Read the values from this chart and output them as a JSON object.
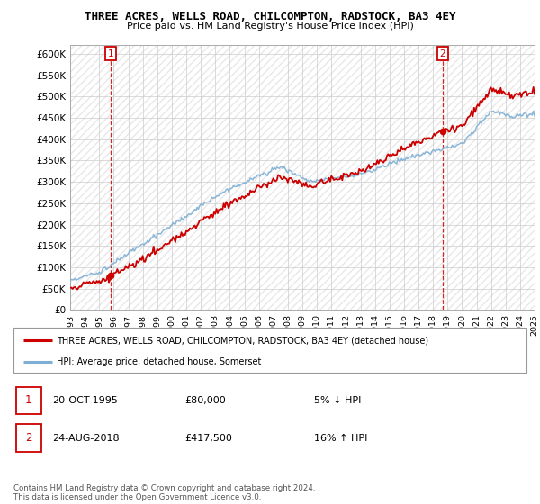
{
  "title": "THREE ACRES, WELLS ROAD, CHILCOMPTON, RADSTOCK, BA3 4EY",
  "subtitle": "Price paid vs. HM Land Registry's House Price Index (HPI)",
  "legend_label1": "THREE ACRES, WELLS ROAD, CHILCOMPTON, RADSTOCK, BA3 4EY (detached house)",
  "legend_label2": "HPI: Average price, detached house, Somerset",
  "annotation1_date": "20-OCT-1995",
  "annotation1_price": "£80,000",
  "annotation1_hpi": "5% ↓ HPI",
  "annotation2_date": "24-AUG-2018",
  "annotation2_price": "£417,500",
  "annotation2_hpi": "16% ↑ HPI",
  "footer": "Contains HM Land Registry data © Crown copyright and database right 2024.\nThis data is licensed under the Open Government Licence v3.0.",
  "price_color": "#cc0000",
  "hpi_color": "#7fafd4",
  "ylim": [
    0,
    620000
  ],
  "yticks": [
    0,
    50000,
    100000,
    150000,
    200000,
    250000,
    300000,
    350000,
    400000,
    450000,
    500000,
    550000,
    600000
  ],
  "ytick_labels": [
    "£0",
    "£50K",
    "£100K",
    "£150K",
    "£200K",
    "£250K",
    "£300K",
    "£350K",
    "£400K",
    "£450K",
    "£500K",
    "£550K",
    "£600K"
  ],
  "purchase1_x": 1995.8,
  "purchase1_y": 80000,
  "purchase2_x": 2018.65,
  "purchase2_y": 417500,
  "xlim": [
    1993,
    2025
  ],
  "xticks": [
    1993,
    1994,
    1995,
    1996,
    1997,
    1998,
    1999,
    2000,
    2001,
    2002,
    2003,
    2004,
    2005,
    2006,
    2007,
    2008,
    2009,
    2010,
    2011,
    2012,
    2013,
    2014,
    2015,
    2016,
    2017,
    2018,
    2019,
    2020,
    2021,
    2022,
    2023,
    2024,
    2025
  ],
  "grid_color": "#cccccc",
  "hatch_color": "#e8e8e8",
  "background_color": "#f8f8f8"
}
